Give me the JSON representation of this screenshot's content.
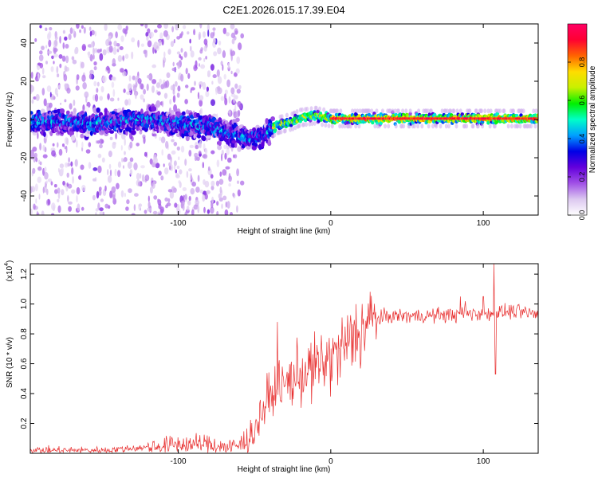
{
  "figure": {
    "title": "C2E1.2026.015.17.39.E04"
  },
  "chart_data": [
    {
      "type": "heatmap",
      "xlabel": "Height of straight line (km)",
      "ylabel": "Frequency (Hz)",
      "xlim": [
        -197,
        136
      ],
      "ylim": [
        -50,
        50
      ],
      "xticks": [
        -100,
        0,
        100
      ],
      "xtick_labels": [
        "-100",
        "0",
        "100"
      ],
      "yticks": [
        -40,
        -20,
        0,
        20,
        40
      ],
      "ytick_labels": [
        "-40",
        "-20",
        "0",
        "20",
        "40"
      ],
      "ridge_frequency": {
        "x": [
          -197,
          -180,
          -160,
          -140,
          -120,
          -100,
          -80,
          -70,
          -60,
          -50,
          -45,
          -40,
          -35,
          -30,
          -25,
          -20,
          -10,
          0,
          20,
          50,
          100,
          136
        ],
        "y": [
          -1,
          -1,
          -2,
          -1,
          0,
          -2,
          -4,
          -6,
          -8,
          -10,
          -9,
          -6,
          -3,
          -2,
          -1,
          1,
          2,
          0.5,
          0.5,
          0.5,
          0.5,
          0.5
        ]
      },
      "colorbar": {
        "label": "Normalized spectral amplitude",
        "range": [
          0,
          1
        ],
        "ticks": [
          0.0,
          0.2,
          0.4,
          0.6,
          0.8
        ],
        "tick_labels": [
          "0.0",
          "0.2",
          "0.4",
          "0.6",
          "0.8"
        ],
        "colors": [
          "#ffffff",
          "#dcc8f0",
          "#a050e6",
          "#6400dc",
          "#0000e6",
          "#00a0ff",
          "#00ffc8",
          "#00f000",
          "#c8f000",
          "#ffdc00",
          "#ff6400",
          "#ff0032",
          "#ff0064"
        ]
      }
    },
    {
      "type": "line",
      "xlabel": "Height of straight line (km)",
      "ylabel": "SNR (10 * v/v)",
      "y_multiplier": "(x10",
      "y_multiplier_exp": "4",
      "xlim": [
        -197,
        136
      ],
      "ylim": [
        0,
        1.27
      ],
      "xticks": [
        -100,
        0,
        100
      ],
      "xtick_labels": [
        "-100",
        "0",
        "100"
      ],
      "yticks": [
        0.2,
        0.4,
        0.6,
        0.8,
        1.0,
        1.2
      ],
      "ytick_labels": [
        "0.2",
        "0.4",
        "0.6",
        "0.8",
        "1.0",
        "1.2"
      ],
      "series": [
        {
          "name": "SNR",
          "color": "#e83030",
          "envelope_x": [
            -197,
            -150,
            -120,
            -100,
            -80,
            -65,
            -58,
            -50,
            -45,
            -40,
            -35,
            -30,
            -25,
            -20,
            -15,
            -10,
            -5,
            0,
            5,
            10,
            15,
            20,
            25,
            30,
            40,
            60,
            80,
            100,
            120,
            136
          ],
          "envelope_y": [
            0.02,
            0.02,
            0.04,
            0.06,
            0.06,
            0.04,
            0.06,
            0.15,
            0.28,
            0.38,
            0.42,
            0.46,
            0.5,
            0.53,
            0.55,
            0.57,
            0.6,
            0.63,
            0.67,
            0.72,
            0.78,
            0.83,
            0.87,
            0.9,
            0.92,
            0.92,
            0.93,
            0.94,
            0.95,
            0.93
          ],
          "spikes": [
            {
              "x": -35,
              "y": 0.88
            },
            {
              "x": -30,
              "y": 0.45
            },
            {
              "x": 85,
              "y": 1.05
            },
            {
              "x": 100,
              "y": 1.05
            },
            {
              "x": 107,
              "y": 1.27
            },
            {
              "x": 108,
              "y": 0.53
            }
          ]
        }
      ]
    }
  ]
}
